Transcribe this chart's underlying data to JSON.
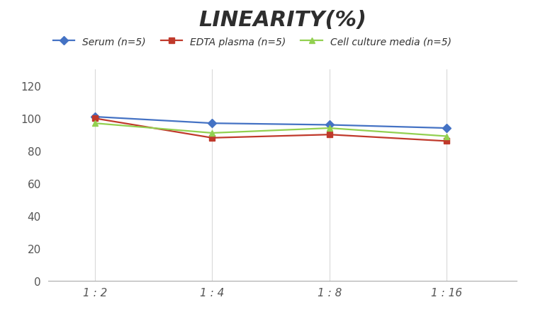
{
  "title": "LINEARITY(%)",
  "x_labels": [
    "1 : 2",
    "1 : 4",
    "1 : 8",
    "1 : 16"
  ],
  "x_positions": [
    0,
    1,
    2,
    3
  ],
  "series": [
    {
      "label": "Serum (n=5)",
      "values": [
        101,
        97,
        96,
        94
      ],
      "color": "#4472C4",
      "marker": "D",
      "markersize": 6,
      "linewidth": 1.6
    },
    {
      "label": "EDTA plasma (n=5)",
      "values": [
        100,
        88,
        90,
        86
      ],
      "color": "#C0392B",
      "marker": "s",
      "markersize": 6,
      "linewidth": 1.6
    },
    {
      "label": "Cell culture media (n=5)",
      "values": [
        97,
        91,
        94,
        89
      ],
      "color": "#92D050",
      "marker": "^",
      "markersize": 6,
      "linewidth": 1.6
    }
  ],
  "ylim": [
    0,
    130
  ],
  "yticks": [
    0,
    20,
    40,
    60,
    80,
    100,
    120
  ],
  "xlim": [
    -0.4,
    3.6
  ],
  "background_color": "#ffffff",
  "grid_color": "#d9d9d9",
  "title_fontsize": 22,
  "legend_fontsize": 10,
  "tick_fontsize": 11,
  "tick_color": "#555555"
}
